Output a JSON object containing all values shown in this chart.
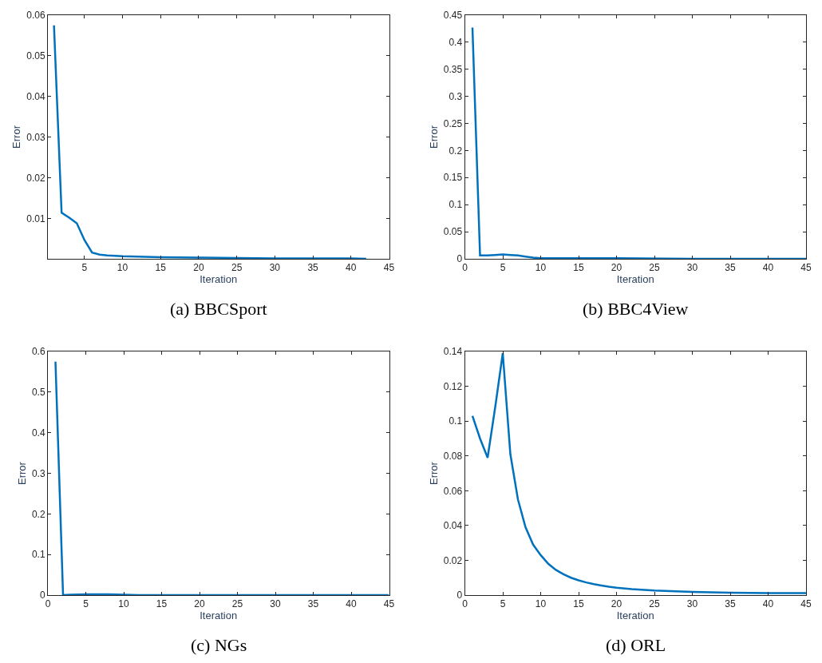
{
  "chart_data": [
    {
      "type": "line",
      "title": "(a) BBCSport",
      "xlabel": "Iteration",
      "ylabel": "Error",
      "xlim": [
        0.2,
        45
      ],
      "ylim": [
        0.0002,
        0.06
      ],
      "xticks": [
        5,
        10,
        15,
        20,
        25,
        30,
        35,
        40,
        45
      ],
      "yticks": [
        0.01,
        0.02,
        0.03,
        0.04,
        0.05,
        0.06
      ],
      "x": [
        1,
        2,
        3,
        4,
        5,
        6,
        7,
        8,
        9,
        10,
        12,
        15,
        20,
        25,
        30,
        35,
        40,
        42
      ],
      "series": [
        {
          "color": "#0072bd",
          "values": [
            0.0575,
            0.0115,
            0.0103,
            0.0089,
            0.0048,
            0.0017,
            0.0012,
            0.001,
            0.0009,
            0.0008,
            0.0007,
            0.0006,
            0.0005,
            0.0004,
            0.0003,
            0.0003,
            0.0003,
            0.0002
          ]
        }
      ]
    },
    {
      "type": "line",
      "title": "(b) BBC4View",
      "xlabel": "Iteration",
      "ylabel": "Error",
      "xlim": [
        0,
        45
      ],
      "ylim": [
        0,
        0.45
      ],
      "xticks": [
        0,
        5,
        10,
        15,
        20,
        25,
        30,
        35,
        40,
        45
      ],
      "yticks": [
        0,
        0.05,
        0.1,
        0.15,
        0.2,
        0.25,
        0.3,
        0.35,
        0.4,
        0.45
      ],
      "x": [
        1,
        2,
        3,
        4,
        5,
        6,
        7,
        8,
        9,
        10,
        15,
        20,
        30,
        45
      ],
      "series": [
        {
          "color": "#0072bd",
          "values": [
            0.427,
            0.006,
            0.006,
            0.007,
            0.008,
            0.007,
            0.006,
            0.004,
            0.002,
            0.001,
            0.001,
            0.001,
            0,
            0
          ]
        }
      ]
    },
    {
      "type": "line",
      "title": "(c) NGs",
      "xlabel": "Iteration",
      "ylabel": "Error",
      "xlim": [
        0,
        45
      ],
      "ylim": [
        0,
        0.6
      ],
      "xticks": [
        0,
        5,
        10,
        15,
        20,
        25,
        30,
        35,
        40,
        45
      ],
      "yticks": [
        0,
        0.1,
        0.2,
        0.3,
        0.4,
        0.5,
        0.6
      ],
      "x": [
        1,
        2,
        3,
        5,
        8,
        10,
        12,
        15,
        20,
        30,
        45
      ],
      "series": [
        {
          "color": "#0072bd",
          "values": [
            0.575,
            0,
            0.001,
            0.002,
            0.002,
            0.001,
            0,
            0,
            0,
            0,
            0
          ]
        }
      ]
    },
    {
      "type": "line",
      "title": "(d) ORL",
      "xlabel": "Iteration",
      "ylabel": "Error",
      "xlim": [
        0,
        45
      ],
      "ylim": [
        0,
        0.14
      ],
      "xticks": [
        0,
        5,
        10,
        15,
        20,
        25,
        30,
        35,
        40,
        45
      ],
      "yticks": [
        0,
        0.02,
        0.04,
        0.06,
        0.08,
        0.1,
        0.12,
        0.14
      ],
      "x": [
        1,
        2,
        3,
        4,
        5,
        6,
        7,
        8,
        9,
        10,
        11,
        12,
        13,
        14,
        15,
        16,
        17,
        18,
        19,
        20,
        22,
        25,
        30,
        35,
        40,
        45
      ],
      "series": [
        {
          "color": "#0072bd",
          "values": [
            0.103,
            0.09,
            0.079,
            0.108,
            0.139,
            0.081,
            0.055,
            0.039,
            0.029,
            0.023,
            0.018,
            0.0145,
            0.012,
            0.01,
            0.0085,
            0.0073,
            0.0063,
            0.0055,
            0.0048,
            0.0042,
            0.0034,
            0.0026,
            0.0018,
            0.0014,
            0.0012,
            0.0011
          ]
        }
      ]
    }
  ]
}
